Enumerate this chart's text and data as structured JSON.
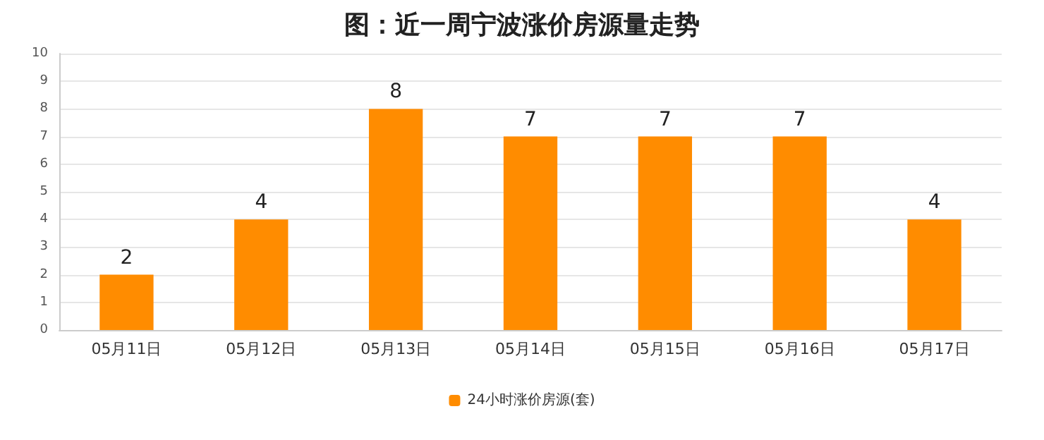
{
  "chart_data": {
    "type": "bar",
    "title": "图：近一周宁波涨价房源量走势",
    "categories": [
      "05月11日",
      "05月12日",
      "05月13日",
      "05月14日",
      "05月15日",
      "05月16日",
      "05月17日"
    ],
    "series": [
      {
        "name": "24小时涨价房源(套)",
        "color": "#ff8c00",
        "values": [
          2,
          4,
          8,
          7,
          7,
          7,
          4
        ]
      }
    ],
    "ylim": [
      0,
      10
    ],
    "yticks": [
      0,
      1,
      2,
      3,
      4,
      5,
      6,
      7,
      8,
      9,
      10
    ],
    "grid": "y",
    "legend": "bottom",
    "data_labels": true
  }
}
